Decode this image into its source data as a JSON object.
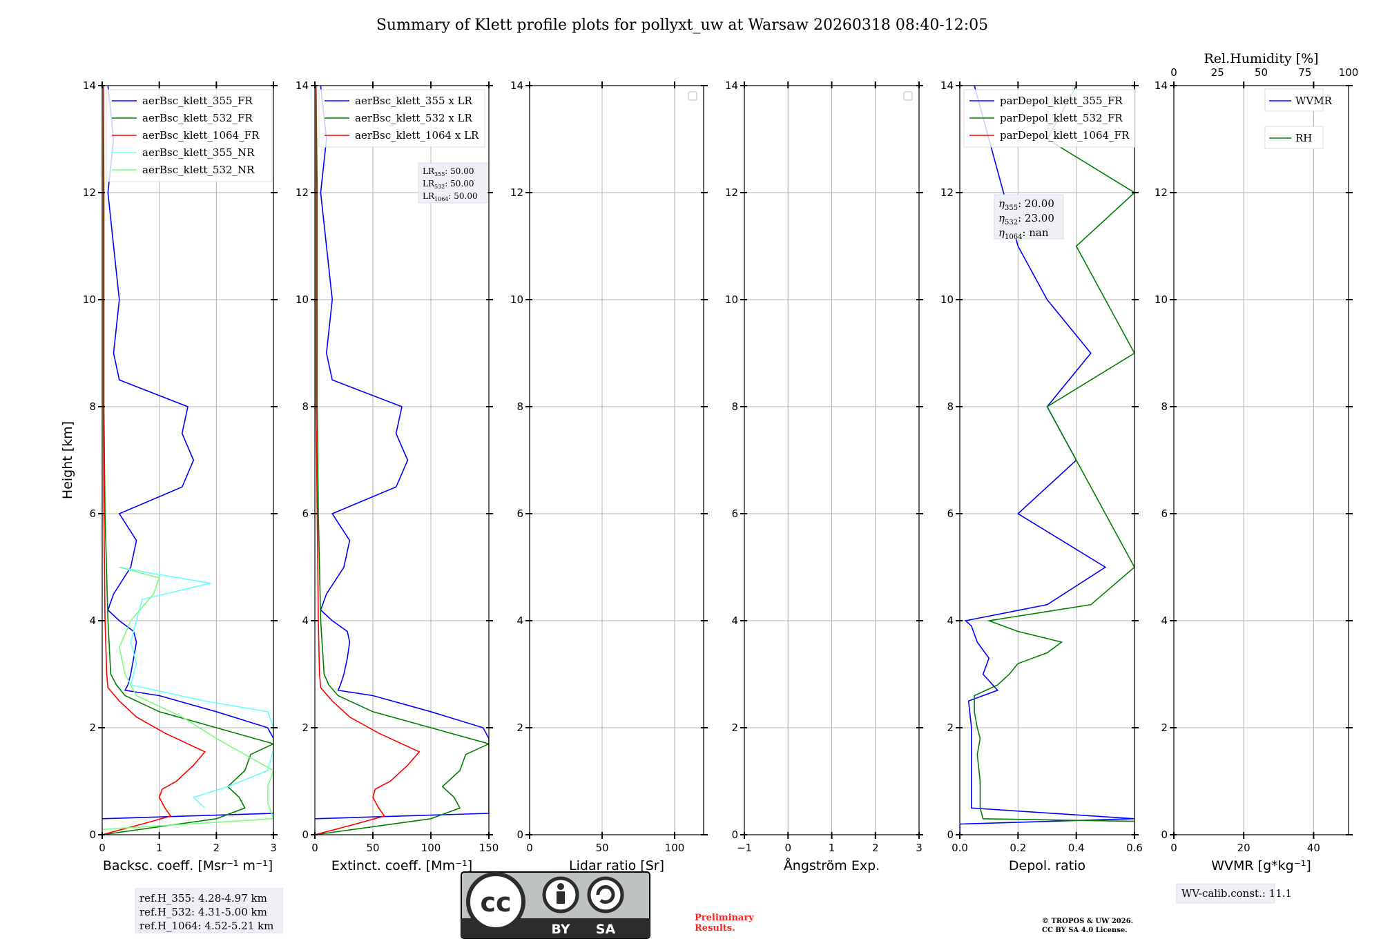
{
  "title": "Summary of Klett profile plots for pollyxt_uw at Warsaw 20260318 08:40-12:05",
  "colors": {
    "c355": "#0000ff",
    "c532": "#008000",
    "c1064": "#ff0000",
    "c355nr": "#66ffff",
    "c532nr": "#7cfc7c"
  },
  "chart_data": [
    {
      "type": "line",
      "id": "bsc",
      "xlabel": "Backsc. coeff. [Msr⁻¹ m⁻¹]",
      "ylabel": "Height [km]",
      "xlim": [
        0,
        3
      ],
      "ylim": [
        0,
        14
      ],
      "xticks": [
        "0",
        "1",
        "2",
        "3"
      ],
      "xtickvals": [
        0,
        1,
        2,
        3
      ],
      "yticks": [
        "0",
        "2",
        "4",
        "6",
        "8",
        "10",
        "12",
        "14"
      ],
      "legend": [
        "aerBsc_klett_355_FR",
        "aerBsc_klett_532_FR",
        "aerBsc_klett_1064_FR",
        "aerBsc_klett_355_NR",
        "aerBsc_klett_532_NR"
      ],
      "series": [
        {
          "name": "aerBsc_klett_355_FR",
          "color": "#0000ff",
          "y": [
            0.3,
            0.4,
            1.0,
            1.5,
            1.8,
            2.0,
            2.3,
            2.6,
            2.7,
            2.8,
            3.0,
            3.3,
            3.6,
            3.8,
            4.0,
            4.2,
            4.5,
            5.0,
            5.5,
            6.0,
            6.5,
            7.0,
            7.5,
            8.0,
            8.5,
            9.0,
            10.0,
            11.0,
            12.0,
            13.0,
            14.0
          ],
          "x": [
            0.0,
            3.0,
            3.0,
            3.0,
            3.0,
            2.9,
            2.0,
            1.0,
            0.4,
            0.45,
            0.5,
            0.55,
            0.6,
            0.55,
            0.3,
            0.1,
            0.2,
            0.5,
            0.6,
            0.3,
            1.4,
            1.6,
            1.4,
            1.5,
            0.3,
            0.2,
            0.3,
            0.2,
            0.1,
            0.2,
            0.1
          ]
        },
        {
          "name": "aerBsc_klett_532_FR",
          "color": "#008000",
          "y": [
            0.0,
            0.3,
            0.5,
            0.7,
            0.9,
            1.2,
            1.5,
            1.7,
            2.0,
            2.3,
            2.6,
            2.8,
            3.0,
            4.0,
            6.0,
            8.0,
            10.0,
            12.0,
            14.0
          ],
          "x": [
            0.0,
            2.0,
            2.5,
            2.4,
            2.2,
            2.5,
            2.6,
            3.0,
            2.0,
            1.0,
            0.4,
            0.25,
            0.15,
            0.1,
            0.05,
            0.03,
            0.03,
            0.03,
            0.02
          ]
        },
        {
          "name": "aerBsc_klett_1064_FR",
          "color": "#ff0000",
          "y": [
            0.0,
            0.2,
            0.35,
            0.5,
            0.7,
            0.85,
            1.0,
            1.3,
            1.55,
            1.7,
            1.9,
            2.2,
            2.5,
            2.75,
            3.0,
            4.0,
            6.0,
            8.0,
            10.0,
            12.0,
            14.0
          ],
          "x": [
            0.0,
            0.7,
            1.2,
            1.1,
            1.0,
            1.05,
            1.3,
            1.6,
            1.8,
            1.5,
            1.1,
            0.6,
            0.3,
            0.1,
            0.08,
            0.05,
            0.03,
            0.02,
            0.02,
            0.02,
            0.02
          ]
        },
        {
          "name": "aerBsc_klett_355_NR",
          "color": "#66ffff",
          "y": [
            0.5,
            0.7,
            0.9,
            1.2,
            1.6,
            2.0,
            2.3,
            2.5,
            2.8,
            3.2,
            3.6,
            4.0,
            4.4,
            4.7,
            4.9,
            5.0
          ],
          "x": [
            1.8,
            1.6,
            2.2,
            2.9,
            3.0,
            3.0,
            2.9,
            1.8,
            0.5,
            0.6,
            0.5,
            0.6,
            0.7,
            1.9,
            0.8,
            0.3
          ]
        },
        {
          "name": "aerBsc_klett_532_NR",
          "color": "#7cfc7c",
          "y": [
            0.1,
            0.3,
            0.6,
            0.9,
            1.2,
            1.5,
            1.8,
            2.2,
            2.6,
            3.0,
            3.5,
            4.0,
            4.5,
            4.8,
            5.0
          ],
          "x": [
            0.0,
            3.0,
            2.9,
            2.9,
            3.0,
            2.5,
            2.0,
            1.4,
            0.6,
            0.4,
            0.3,
            0.5,
            0.9,
            1.0,
            0.3
          ]
        }
      ],
      "note_box": [
        "ref.H_355: 4.28-4.97 km",
        "ref.H_532: 4.31-5.00 km",
        "ref.H_1064: 4.52-5.21 km"
      ]
    },
    {
      "type": "line",
      "id": "ext",
      "xlabel": "Extinct. coeff. [Mm⁻¹]",
      "xlim": [
        0,
        150
      ],
      "ylim": [
        0,
        14
      ],
      "xticks": [
        "0",
        "50",
        "100",
        "150"
      ],
      "xtickvals": [
        0,
        50,
        100,
        150
      ],
      "yticks": [
        "0",
        "2",
        "4",
        "6",
        "8",
        "10",
        "12",
        "14"
      ],
      "legend": [
        "aerBsc_klett_355 x LR",
        "aerBsc_klett_532 x LR",
        "aerBsc_klett_1064 x LR"
      ],
      "series": [
        {
          "name": "aerBsc_klett_355 x LR",
          "color": "#0000ff",
          "y": [
            0.3,
            0.4,
            1.0,
            1.5,
            1.8,
            2.0,
            2.3,
            2.6,
            2.7,
            2.8,
            3.0,
            3.3,
            3.6,
            3.8,
            4.0,
            4.2,
            4.5,
            5.0,
            5.5,
            6.0,
            6.5,
            7.0,
            7.5,
            8.0,
            8.5,
            9.0,
            10.0,
            11.0,
            12.0,
            13.0,
            14.0
          ],
          "x": [
            0,
            150,
            150,
            150,
            150,
            145,
            100,
            50,
            20,
            22,
            25,
            28,
            30,
            28,
            15,
            5,
            10,
            25,
            30,
            15,
            70,
            80,
            70,
            75,
            15,
            10,
            15,
            10,
            5,
            10,
            5
          ]
        },
        {
          "name": "aerBsc_klett_532 x LR",
          "color": "#008000",
          "y": [
            0.0,
            0.3,
            0.5,
            0.7,
            0.9,
            1.2,
            1.5,
            1.7,
            2.0,
            2.3,
            2.6,
            2.8,
            3.0,
            4.0,
            6.0,
            8.0,
            10.0,
            12.0,
            14.0
          ],
          "x": [
            0,
            100,
            125,
            120,
            110,
            125,
            130,
            150,
            100,
            50,
            20,
            12,
            8,
            5,
            3,
            2,
            2,
            2,
            1
          ]
        },
        {
          "name": "aerBsc_klett_1064 x LR",
          "color": "#ff0000",
          "y": [
            0.0,
            0.2,
            0.35,
            0.5,
            0.7,
            0.85,
            1.0,
            1.3,
            1.55,
            1.7,
            1.9,
            2.2,
            2.5,
            2.75,
            3.0,
            4.0,
            6.0,
            8.0,
            10.0,
            12.0,
            14.0
          ],
          "x": [
            0,
            35,
            60,
            55,
            50,
            52,
            65,
            80,
            90,
            75,
            55,
            30,
            15,
            5,
            4,
            3,
            2,
            1,
            1,
            1,
            1
          ]
        }
      ],
      "lr_box": [
        "LR",
        "355",
        ": 50.00",
        "LR",
        "532",
        ": 50.00",
        "LR",
        "1064",
        ": 50.00"
      ]
    },
    {
      "type": "line",
      "id": "lr",
      "xlabel": "Lidar ratio [Sr]",
      "xlim": [
        0,
        120
      ],
      "ylim": [
        0,
        14
      ],
      "xticks": [
        "0",
        "50",
        "100"
      ],
      "xtickvals": [
        0,
        50,
        100
      ],
      "yticks": [
        "0",
        "2",
        "4",
        "6",
        "8",
        "10",
        "12",
        "14"
      ],
      "series": []
    },
    {
      "type": "line",
      "id": "ang",
      "xlabel": "Ångström Exp.",
      "xlim": [
        -1,
        3
      ],
      "ylim": [
        0,
        14
      ],
      "xticks": [
        "−1",
        "0",
        "1",
        "2",
        "3"
      ],
      "xtickvals": [
        -1,
        0,
        1,
        2,
        3
      ],
      "yticks": [
        "0",
        "2",
        "4",
        "6",
        "8",
        "10",
        "12",
        "14"
      ],
      "series": []
    },
    {
      "type": "line",
      "id": "dep",
      "xlabel": "Depol. ratio",
      "xlim": [
        0,
        0.6
      ],
      "ylim": [
        0,
        14
      ],
      "xticks": [
        "0.0",
        "0.2",
        "0.4",
        "0.6"
      ],
      "xtickvals": [
        0,
        0.2,
        0.4,
        0.6
      ],
      "yticks": [
        "0",
        "2",
        "4",
        "6",
        "8",
        "10",
        "12",
        "14"
      ],
      "legend": [
        "parDepol_klett_355_FR",
        "parDepol_klett_532_FR",
        "parDepol_klett_1064_FR"
      ],
      "series": [
        {
          "name": "parDepol_klett_355_FR",
          "color": "#0000ff",
          "y": [
            0.0,
            0.2,
            0.3,
            0.5,
            1.0,
            1.5,
            2.0,
            2.5,
            2.7,
            3.0,
            3.3,
            3.6,
            3.9,
            4.0,
            4.3,
            5.0,
            6.0,
            7.0,
            8.0,
            9.0,
            10.0,
            11.0,
            12.0,
            13.0,
            14.0
          ],
          "x": [
            0.0,
            0.0,
            0.6,
            0.04,
            0.04,
            0.04,
            0.04,
            0.03,
            0.13,
            0.08,
            0.1,
            0.06,
            0.04,
            0.02,
            0.3,
            0.5,
            0.2,
            0.4,
            0.3,
            0.45,
            0.3,
            0.2,
            0.15,
            0.1,
            0.05
          ]
        },
        {
          "name": "parDepol_klett_532_FR",
          "color": "#008000",
          "y": [
            0.25,
            0.3,
            0.5,
            1.0,
            1.5,
            1.8,
            2.0,
            2.3,
            2.6,
            2.8,
            3.0,
            3.2,
            3.4,
            3.6,
            3.8,
            4.0,
            4.3,
            5.0,
            6.0,
            7.0,
            8.0,
            9.0,
            10.0,
            11.0,
            12.0,
            13.0,
            14.0
          ],
          "x": [
            0.6,
            0.08,
            0.07,
            0.07,
            0.06,
            0.07,
            0.06,
            0.05,
            0.05,
            0.13,
            0.17,
            0.2,
            0.3,
            0.35,
            0.2,
            0.1,
            0.45,
            0.6,
            0.5,
            0.4,
            0.3,
            0.6,
            0.5,
            0.4,
            0.6,
            0.3,
            0.4
          ]
        }
      ],
      "eta_box": [
        "η",
        "355",
        ": 20.00",
        "η",
        "532",
        ": 23.00",
        "η",
        "1064",
        ": nan"
      ]
    },
    {
      "type": "line",
      "id": "wv",
      "xlabel": "WVMR [g*kg⁻¹]",
      "xlim": [
        0,
        50
      ],
      "ylim": [
        0,
        14
      ],
      "xticks": [
        "0",
        "20",
        "40"
      ],
      "xtickvals": [
        0,
        20,
        40
      ],
      "yticks": [
        "0",
        "2",
        "4",
        "6",
        "8",
        "10",
        "12",
        "14"
      ],
      "top_xlabel": "Rel.Humidity [%]",
      "top_xticks": [
        "0",
        "25",
        "50",
        "75",
        "100"
      ],
      "top_xtickvals": [
        0,
        25,
        50,
        75,
        100
      ],
      "legend": [
        "WVMR",
        "RH"
      ],
      "series": [],
      "note_box": [
        "WV-calib.const.: 11.1"
      ]
    }
  ],
  "footer": {
    "cc_by": "BY",
    "cc_sa": "SA",
    "cc_logo": "cc",
    "prelim_1": "Preliminary",
    "prelim_2": "Results.",
    "copy_1": "© TROPOS & UW 2026.",
    "copy_2": "CC BY SA 4.0 License."
  }
}
